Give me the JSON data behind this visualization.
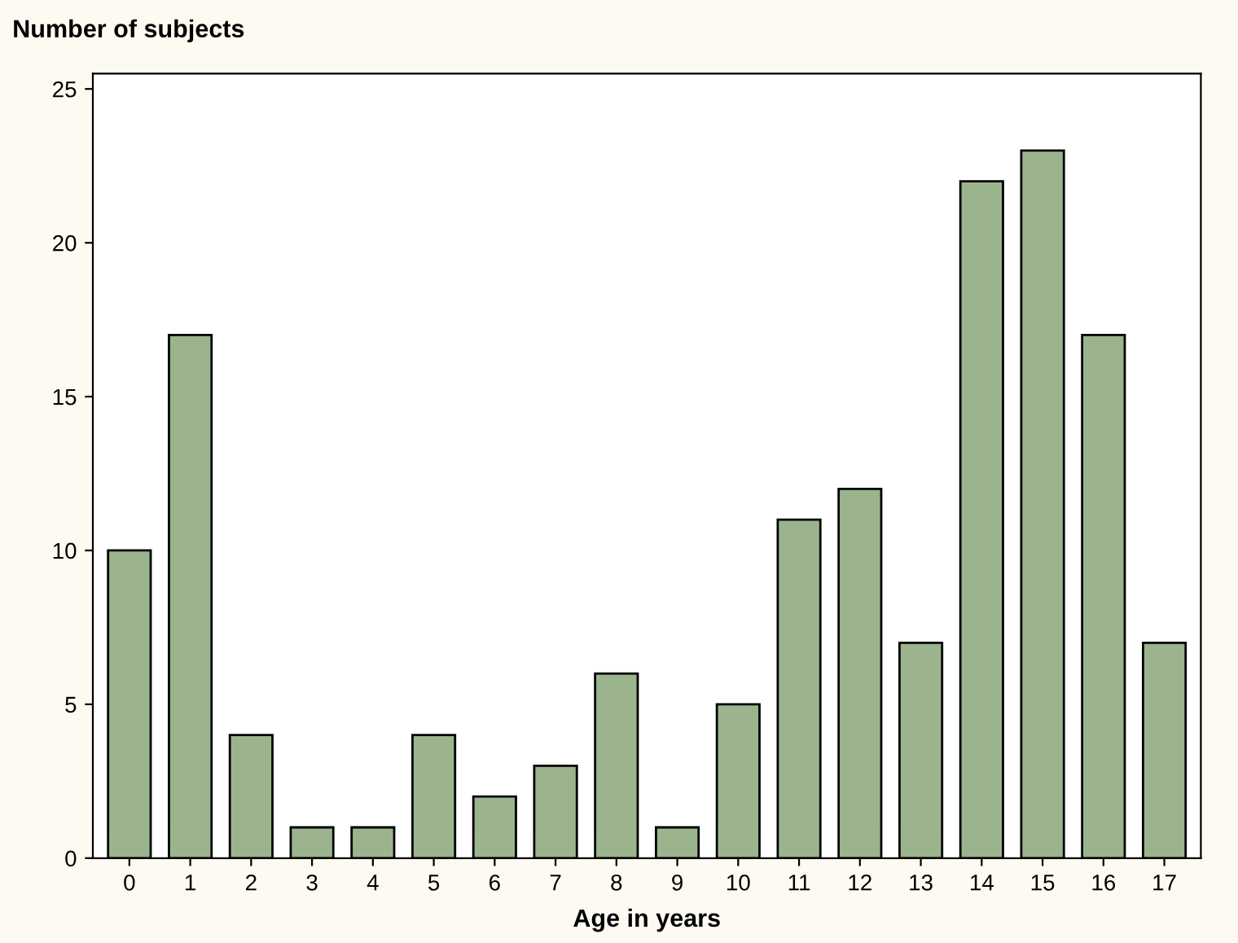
{
  "chart_data": {
    "type": "bar",
    "ylabel": "Number of subjects",
    "xlabel": "Age in years",
    "categories": [
      "0",
      "1",
      "2",
      "3",
      "4",
      "5",
      "6",
      "7",
      "8",
      "9",
      "10",
      "11",
      "12",
      "13",
      "14",
      "15",
      "16",
      "17"
    ],
    "values": [
      10,
      17,
      4,
      1,
      1,
      4,
      2,
      3,
      6,
      1,
      5,
      11,
      12,
      7,
      22,
      23,
      17,
      7
    ],
    "color": "#9bb48e",
    "ylim": [
      0,
      25.5
    ],
    "yticks": [
      0,
      5,
      10,
      15,
      20,
      25
    ],
    "grid": false,
    "legend": false
  }
}
